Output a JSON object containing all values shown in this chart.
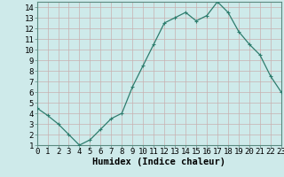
{
  "x": [
    0,
    1,
    2,
    3,
    4,
    5,
    6,
    7,
    8,
    9,
    10,
    11,
    12,
    13,
    14,
    15,
    16,
    17,
    18,
    19,
    20,
    21,
    22,
    23
  ],
  "y": [
    4.5,
    3.8,
    3.0,
    2.0,
    1.0,
    1.5,
    2.5,
    3.5,
    4.0,
    6.5,
    8.5,
    10.5,
    12.5,
    13.0,
    13.5,
    12.7,
    13.2,
    14.5,
    13.5,
    11.7,
    10.5,
    9.5,
    7.5,
    6.0
  ],
  "line_color": "#2e7d6e",
  "marker": "+",
  "bg_color": "#ceeaea",
  "grid_color_h": "#c8b0b0",
  "grid_color_v": "#c8b0b0",
  "xlabel": "Humidex (Indice chaleur)",
  "xlabel_fontsize": 7.5,
  "xlim": [
    0,
    23
  ],
  "ylim": [
    1,
    14.5
  ],
  "yticks": [
    1,
    2,
    3,
    4,
    5,
    6,
    7,
    8,
    9,
    10,
    11,
    12,
    13,
    14
  ],
  "xticks": [
    0,
    1,
    2,
    3,
    4,
    5,
    6,
    7,
    8,
    9,
    10,
    11,
    12,
    13,
    14,
    15,
    16,
    17,
    18,
    19,
    20,
    21,
    22,
    23
  ],
  "tick_fontsize": 6.5,
  "spine_color": "#5a8a80",
  "line_width": 0.9,
  "marker_size": 3.5,
  "marker_edge_width": 0.8
}
